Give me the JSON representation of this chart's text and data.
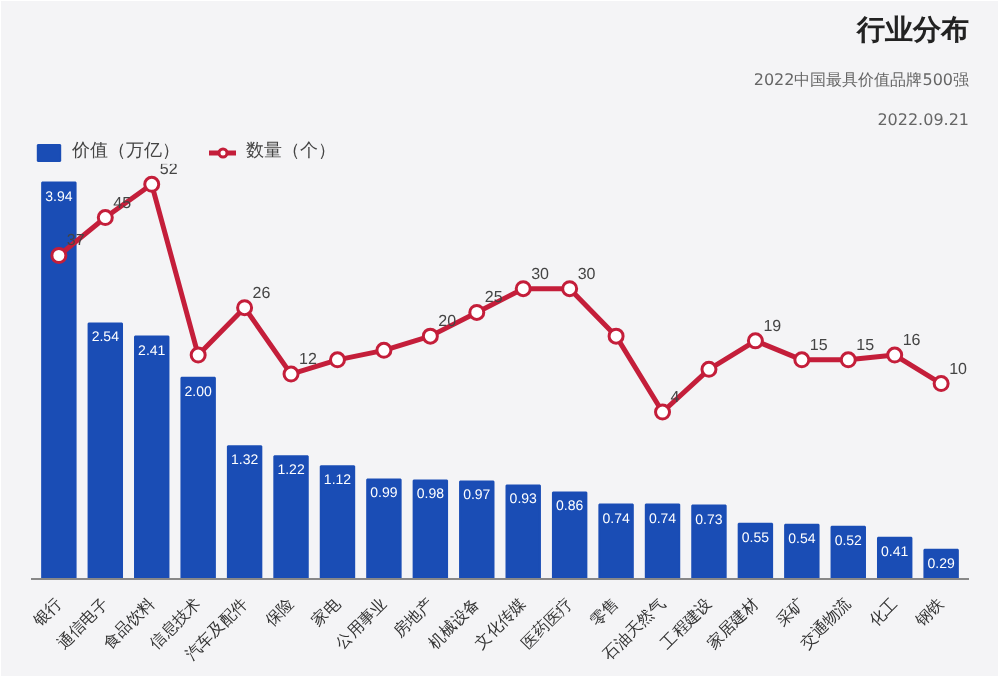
{
  "chart_data": {
    "type": "bar",
    "title": "行业分布",
    "subtitle": "2022中国最具价值品牌500强",
    "annotations": [
      "2022.09.21"
    ],
    "categories": [
      "银行",
      "通信电子",
      "食品饮料",
      "信息技术",
      "汽车及配件",
      "保险",
      "家电",
      "公用事业",
      "房地产",
      "机械设备",
      "文化传媒",
      "医药医疗",
      "零售",
      "石油天然气",
      "工程建设",
      "家居建材",
      "采矿",
      "交通物流",
      "化工",
      "钢铁"
    ],
    "series": [
      {
        "name": "价值（万亿）",
        "color": "#1a4db5",
        "values": [
          3.94,
          2.54,
          2.41,
          2.0,
          1.32,
          1.22,
          1.12,
          0.99,
          0.98,
          0.97,
          0.93,
          0.86,
          0.74,
          0.74,
          0.73,
          0.55,
          0.54,
          0.52,
          0.41,
          0.29
        ],
        "value_labels": [
          "3.94",
          "2.54",
          "2.41",
          "2.00",
          "1.32",
          "1.22",
          "1.12",
          "0.99",
          "0.98",
          "0.97",
          "0.93",
          "0.86",
          "0.74",
          "0.74",
          "0.73",
          "0.55",
          "0.54",
          "0.52",
          "0.41",
          "0.29"
        ]
      },
      {
        "name": "数量（个）",
        "type": "line",
        "axis": "y2",
        "color": "#c41e3a",
        "marker": "circle",
        "values": [
          37,
          45,
          52,
          16,
          26,
          12,
          15,
          17,
          20,
          25,
          30,
          30,
          20,
          4,
          13,
          19,
          15,
          15,
          16,
          10
        ],
        "value_labels": [
          "37",
          "45",
          "52",
          null,
          "26",
          "12",
          null,
          null,
          "20",
          "25",
          "30",
          "30",
          null,
          "4",
          null,
          "19",
          "15",
          "15",
          "16",
          "10"
        ]
      }
    ],
    "legend": "top left",
    "tick_labels": "x"
  }
}
